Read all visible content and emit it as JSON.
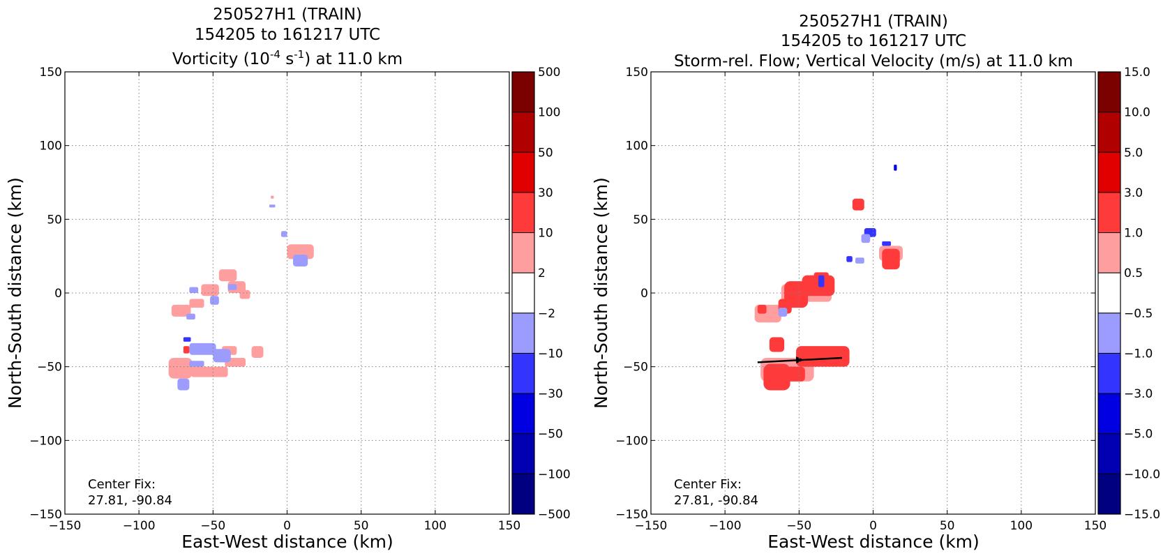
{
  "chart_data": [
    {
      "type": "heatmap",
      "title_lines": [
        "250527H1 (TRAIN)",
        "154205 to 161217 UTC"
      ],
      "title3": {
        "pre": "Vorticity (10",
        "sup1": "-4",
        "mid": " s",
        "sup2": "-1",
        "post": ") at 11.0 km"
      },
      "xlabel": "East-West distance (km)",
      "ylabel": "North-South distance (km)",
      "xlim": [
        -150,
        150
      ],
      "ylim": [
        -150,
        150
      ],
      "xticks": [
        "−150",
        "−100",
        "−50",
        "0",
        "50",
        "100",
        "150"
      ],
      "yticks": [
        "150",
        "100",
        "50",
        "0",
        "−50",
        "−100",
        "−150"
      ],
      "grid": true,
      "annotation": [
        "Center Fix:",
        "27.81, -90.84"
      ],
      "colorbar": {
        "labels": [
          "500",
          "100",
          "50",
          "30",
          "10",
          "2",
          "−2",
          "−10",
          "−30",
          "−50",
          "−100",
          "−500"
        ],
        "colors": [
          "#7b0000",
          "#b00000",
          "#e00000",
          "#ff3a3a",
          "#ff9e9e",
          "#ffffff",
          "#9c9cff",
          "#3434ff",
          "#0000e0",
          "#0000b2",
          "#000080"
        ]
      },
      "regions": [
        {
          "level": 1,
          "color": "#ff9e9e",
          "x": [
            -78,
            -65
          ],
          "y": [
            -16,
            -8
          ]
        },
        {
          "level": 1,
          "color": "#ff9e9e",
          "x": [
            -66,
            -56
          ],
          "y": [
            -10,
            -4
          ]
        },
        {
          "level": 1,
          "color": "#ff9e9e",
          "x": [
            -58,
            -46
          ],
          "y": [
            -2,
            6
          ]
        },
        {
          "level": 1,
          "color": "#ff9e9e",
          "x": [
            -46,
            -34
          ],
          "y": [
            8,
            16
          ]
        },
        {
          "level": 1,
          "color": "#ff9e9e",
          "x": [
            -40,
            -28
          ],
          "y": [
            0,
            8
          ]
        },
        {
          "level": 1,
          "color": "#ff9e9e",
          "x": [
            -32,
            -25
          ],
          "y": [
            -4,
            2
          ]
        },
        {
          "level": -1,
          "color": "#9c9cff",
          "x": [
            -68,
            -62
          ],
          "y": [
            -18,
            -14
          ]
        },
        {
          "level": -1,
          "color": "#9c9cff",
          "x": [
            -52,
            -46
          ],
          "y": [
            -8,
            -2
          ]
        },
        {
          "level": -1,
          "color": "#9c9cff",
          "x": [
            -66,
            -60
          ],
          "y": [
            0,
            4
          ]
        },
        {
          "level": -1,
          "color": "#9c9cff",
          "x": [
            -40,
            -34
          ],
          "y": [
            2,
            6
          ]
        },
        {
          "level": 1,
          "color": "#ff9e9e",
          "x": [
            0,
            18
          ],
          "y": [
            23,
            33
          ]
        },
        {
          "level": -1,
          "color": "#9c9cff",
          "x": [
            4,
            14
          ],
          "y": [
            18,
            26
          ]
        },
        {
          "level": -1,
          "color": "#9c9cff",
          "x": [
            -4,
            0
          ],
          "y": [
            38,
            42
          ]
        },
        {
          "level": -1,
          "color": "#9c9cff",
          "x": [
            -12,
            -8
          ],
          "y": [
            58,
            60
          ]
        },
        {
          "level": 1,
          "color": "#ff9e9e",
          "x": [
            -11,
            -9
          ],
          "y": [
            64,
            66
          ]
        },
        {
          "level": 1,
          "color": "#ff9e9e",
          "x": [
            -80,
            -64
          ],
          "y": [
            -58,
            -44
          ]
        },
        {
          "level": 1,
          "color": "#ff9e9e",
          "x": [
            -65,
            -40
          ],
          "y": [
            -57,
            -50
          ]
        },
        {
          "level": 1,
          "color": "#ff9e9e",
          "x": [
            -42,
            -28
          ],
          "y": [
            -50,
            -44
          ]
        },
        {
          "level": 1,
          "color": "#ff9e9e",
          "x": [
            -44,
            -34
          ],
          "y": [
            -42,
            -36
          ]
        },
        {
          "level": 1,
          "color": "#ff9e9e",
          "x": [
            -24,
            -16
          ],
          "y": [
            -44,
            -36
          ]
        },
        {
          "level": -1,
          "color": "#9c9cff",
          "x": [
            -66,
            -48
          ],
          "y": [
            -42,
            -34
          ]
        },
        {
          "level": -1,
          "color": "#9c9cff",
          "x": [
            -50,
            -38
          ],
          "y": [
            -47,
            -38
          ]
        },
        {
          "level": -1,
          "color": "#9c9cff",
          "x": [
            -74,
            -66
          ],
          "y": [
            -66,
            -58
          ]
        },
        {
          "level": -1,
          "color": "#9c9cff",
          "x": [
            -66,
            -56
          ],
          "y": [
            -50,
            -46
          ]
        },
        {
          "level": -2,
          "color": "#3434ff",
          "x": [
            -70,
            -65
          ],
          "y": [
            -33,
            -30
          ]
        },
        {
          "level": 2,
          "color": "#ff3a3a",
          "x": [
            -70,
            -66
          ],
          "y": [
            -41,
            -36
          ]
        }
      ]
    },
    {
      "type": "heatmap",
      "title_lines": [
        "250527H1 (TRAIN)",
        "154205 to 161217 UTC",
        "Storm-rel. Flow; Vertical Velocity (m/s) at 11.0 km"
      ],
      "xlabel": "East-West distance (km)",
      "ylabel": "North-South distance (km)",
      "xlim": [
        -150,
        150
      ],
      "ylim": [
        -150,
        150
      ],
      "xticks": [
        "−150",
        "−100",
        "−50",
        "0",
        "50",
        "100",
        "150"
      ],
      "yticks": [
        "150",
        "100",
        "50",
        "0",
        "−50",
        "−100",
        "−150"
      ],
      "grid": true,
      "annotation": [
        "Center Fix:",
        "27.81, -90.84"
      ],
      "colorbar": {
        "labels": [
          "15.0",
          "10.0",
          "5.0",
          "3.0",
          "1.0",
          "0.5",
          "−0.5",
          "−1.0",
          "−3.0",
          "−5.0",
          "−10.0",
          "−15.0"
        ],
        "colors": [
          "#7b0000",
          "#b00000",
          "#e00000",
          "#ff3a3a",
          "#ff9e9e",
          "#ffffff",
          "#9c9cff",
          "#3434ff",
          "#0000e0",
          "#0000b2",
          "#000080"
        ]
      },
      "regions": [
        {
          "level": 1,
          "color": "#ff9e9e",
          "x": [
            -76,
            -40
          ],
          "y": [
            -60,
            -44
          ]
        },
        {
          "level": 2,
          "color": "#ff3a3a",
          "x": [
            -74,
            -56
          ],
          "y": [
            -66,
            -48
          ]
        },
        {
          "level": 2,
          "color": "#ff3a3a",
          "x": [
            -60,
            -46
          ],
          "y": [
            -60,
            -50
          ]
        },
        {
          "level": 2,
          "color": "#ff3a3a",
          "x": [
            -52,
            -16
          ],
          "y": [
            -50,
            -36
          ]
        },
        {
          "level": 2,
          "color": "#ff3a3a",
          "x": [
            -70,
            -60
          ],
          "y": [
            -40,
            -30
          ]
        },
        {
          "level": 1,
          "color": "#ff9e9e",
          "x": [
            -62,
            -28
          ],
          "y": [
            -6,
            6
          ]
        },
        {
          "level": 2,
          "color": "#ff3a3a",
          "x": [
            -60,
            -44
          ],
          "y": [
            -10,
            8
          ]
        },
        {
          "level": 2,
          "color": "#ff3a3a",
          "x": [
            -48,
            -26
          ],
          "y": [
            -2,
            12
          ]
        },
        {
          "level": 2,
          "color": "#ff3a3a",
          "x": [
            -40,
            -30
          ],
          "y": [
            8,
            14
          ]
        },
        {
          "level": 1,
          "color": "#ff9e9e",
          "x": [
            -80,
            -62
          ],
          "y": [
            -20,
            -8
          ]
        },
        {
          "level": 2,
          "color": "#ff3a3a",
          "x": [
            -78,
            -72
          ],
          "y": [
            -14,
            -8
          ]
        },
        {
          "level": 2,
          "color": "#ff3a3a",
          "x": [
            -64,
            -55
          ],
          "y": [
            -14,
            -4
          ]
        },
        {
          "level": -2,
          "color": "#3434ff",
          "x": [
            -37,
            -33
          ],
          "y": [
            4,
            12
          ]
        },
        {
          "level": -1,
          "color": "#9c9cff",
          "x": [
            -64,
            -58
          ],
          "y": [
            -16,
            -10
          ]
        },
        {
          "level": 2,
          "color": "#ff3a3a",
          "x": [
            -14,
            -6
          ],
          "y": [
            56,
            64
          ]
        },
        {
          "level": 1,
          "color": "#ff9e9e",
          "x": [
            4,
            20
          ],
          "y": [
            22,
            32
          ]
        },
        {
          "level": 2,
          "color": "#ff3a3a",
          "x": [
            6,
            18
          ],
          "y": [
            16,
            30
          ]
        },
        {
          "level": -2,
          "color": "#3434ff",
          "x": [
            -6,
            2
          ],
          "y": [
            38,
            44
          ]
        },
        {
          "level": -1,
          "color": "#9c9cff",
          "x": [
            -8,
            -2
          ],
          "y": [
            34,
            40
          ]
        },
        {
          "level": -2,
          "color": "#3434ff",
          "x": [
            6,
            12
          ],
          "y": [
            32,
            35
          ]
        },
        {
          "level": -2,
          "color": "#3434ff",
          "x": [
            -18,
            -14
          ],
          "y": [
            21,
            25
          ]
        },
        {
          "level": -1,
          "color": "#9c9cff",
          "x": [
            -12,
            -6
          ],
          "y": [
            20,
            24
          ]
        },
        {
          "level": -3,
          "color": "#0000e0",
          "x": [
            14,
            16
          ],
          "y": [
            83,
            87
          ]
        }
      ],
      "vectors": [
        {
          "x0": -78,
          "y0": -47,
          "x1": -21,
          "y1": -44,
          "arrow_at": [
            -52,
            -45.5
          ]
        }
      ]
    }
  ]
}
